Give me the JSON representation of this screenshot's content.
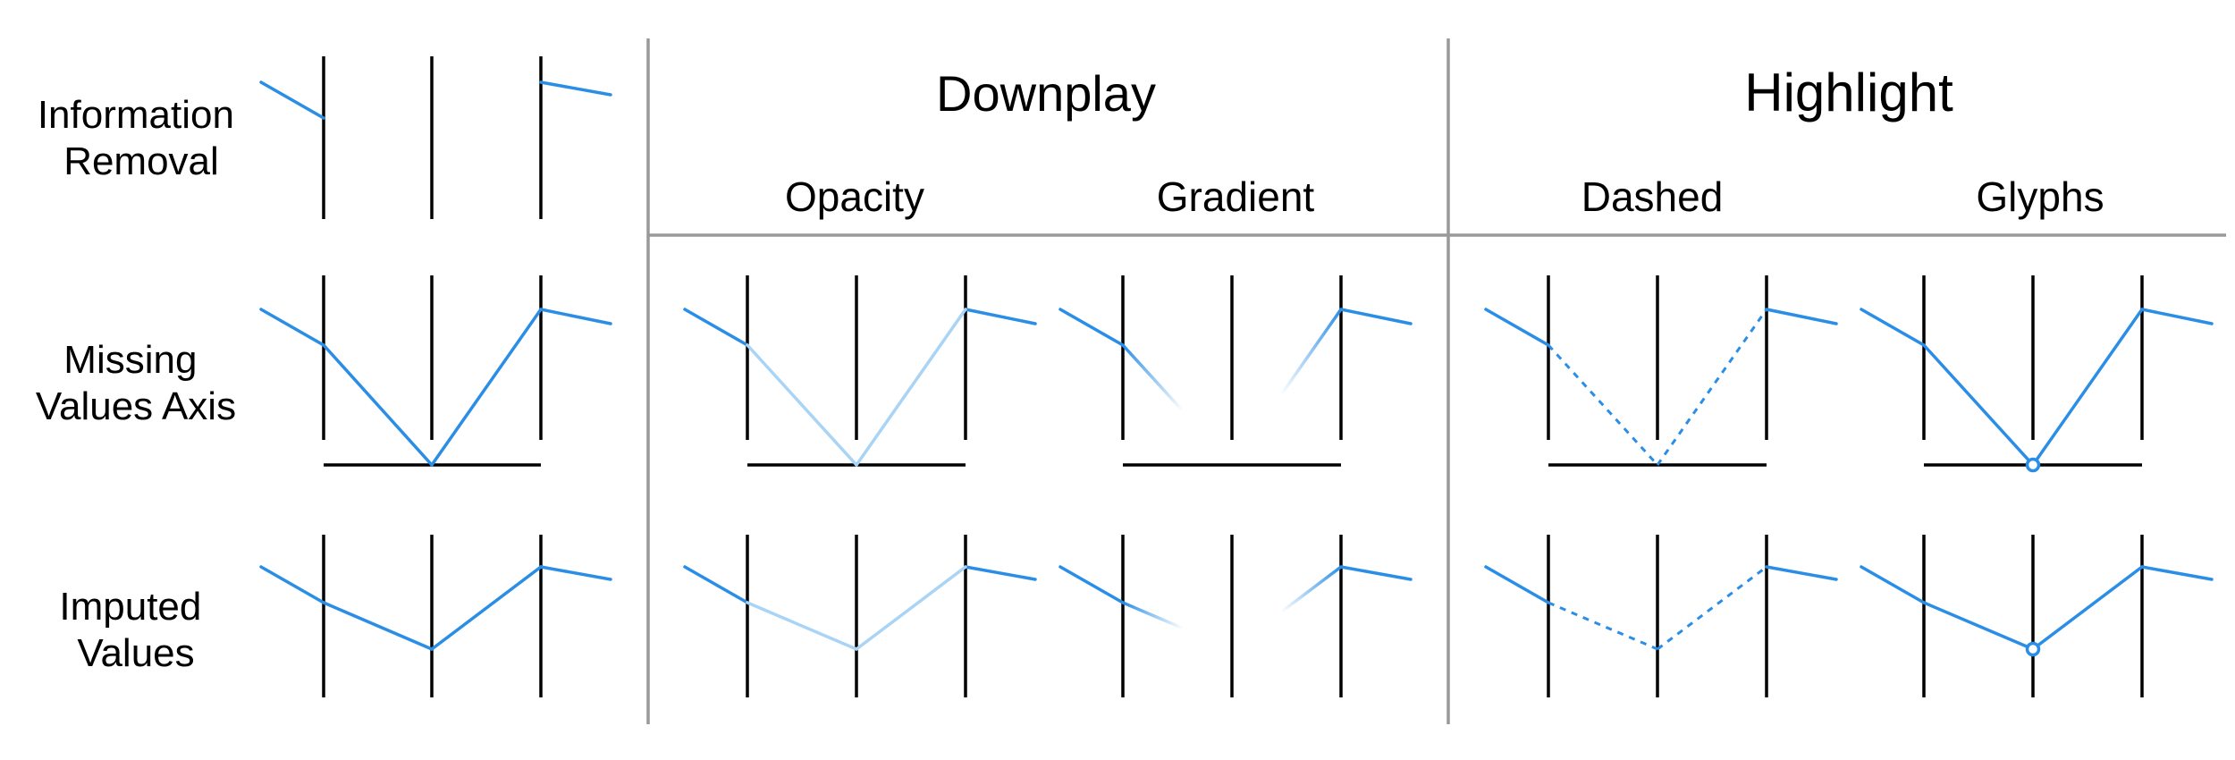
{
  "headers": {
    "downplay": "Downplay",
    "highlight": "Highlight",
    "opacity": "Opacity",
    "gradient": "Gradient",
    "dashed": "Dashed",
    "glyphs": "Glyphs"
  },
  "rows": {
    "information_removal": [
      "Information",
      "Removal"
    ],
    "missing_values_axis": [
      "Missing",
      "Values Axis"
    ],
    "imputed_values": [
      "Imputed",
      "Values"
    ]
  },
  "colors": {
    "line": "#2b8ee6",
    "line_faded": "#a9d4f5",
    "axis": "#000000",
    "divider": "#999999",
    "downplay": "#c8c8c8",
    "highlight": "#2b8ee6"
  }
}
